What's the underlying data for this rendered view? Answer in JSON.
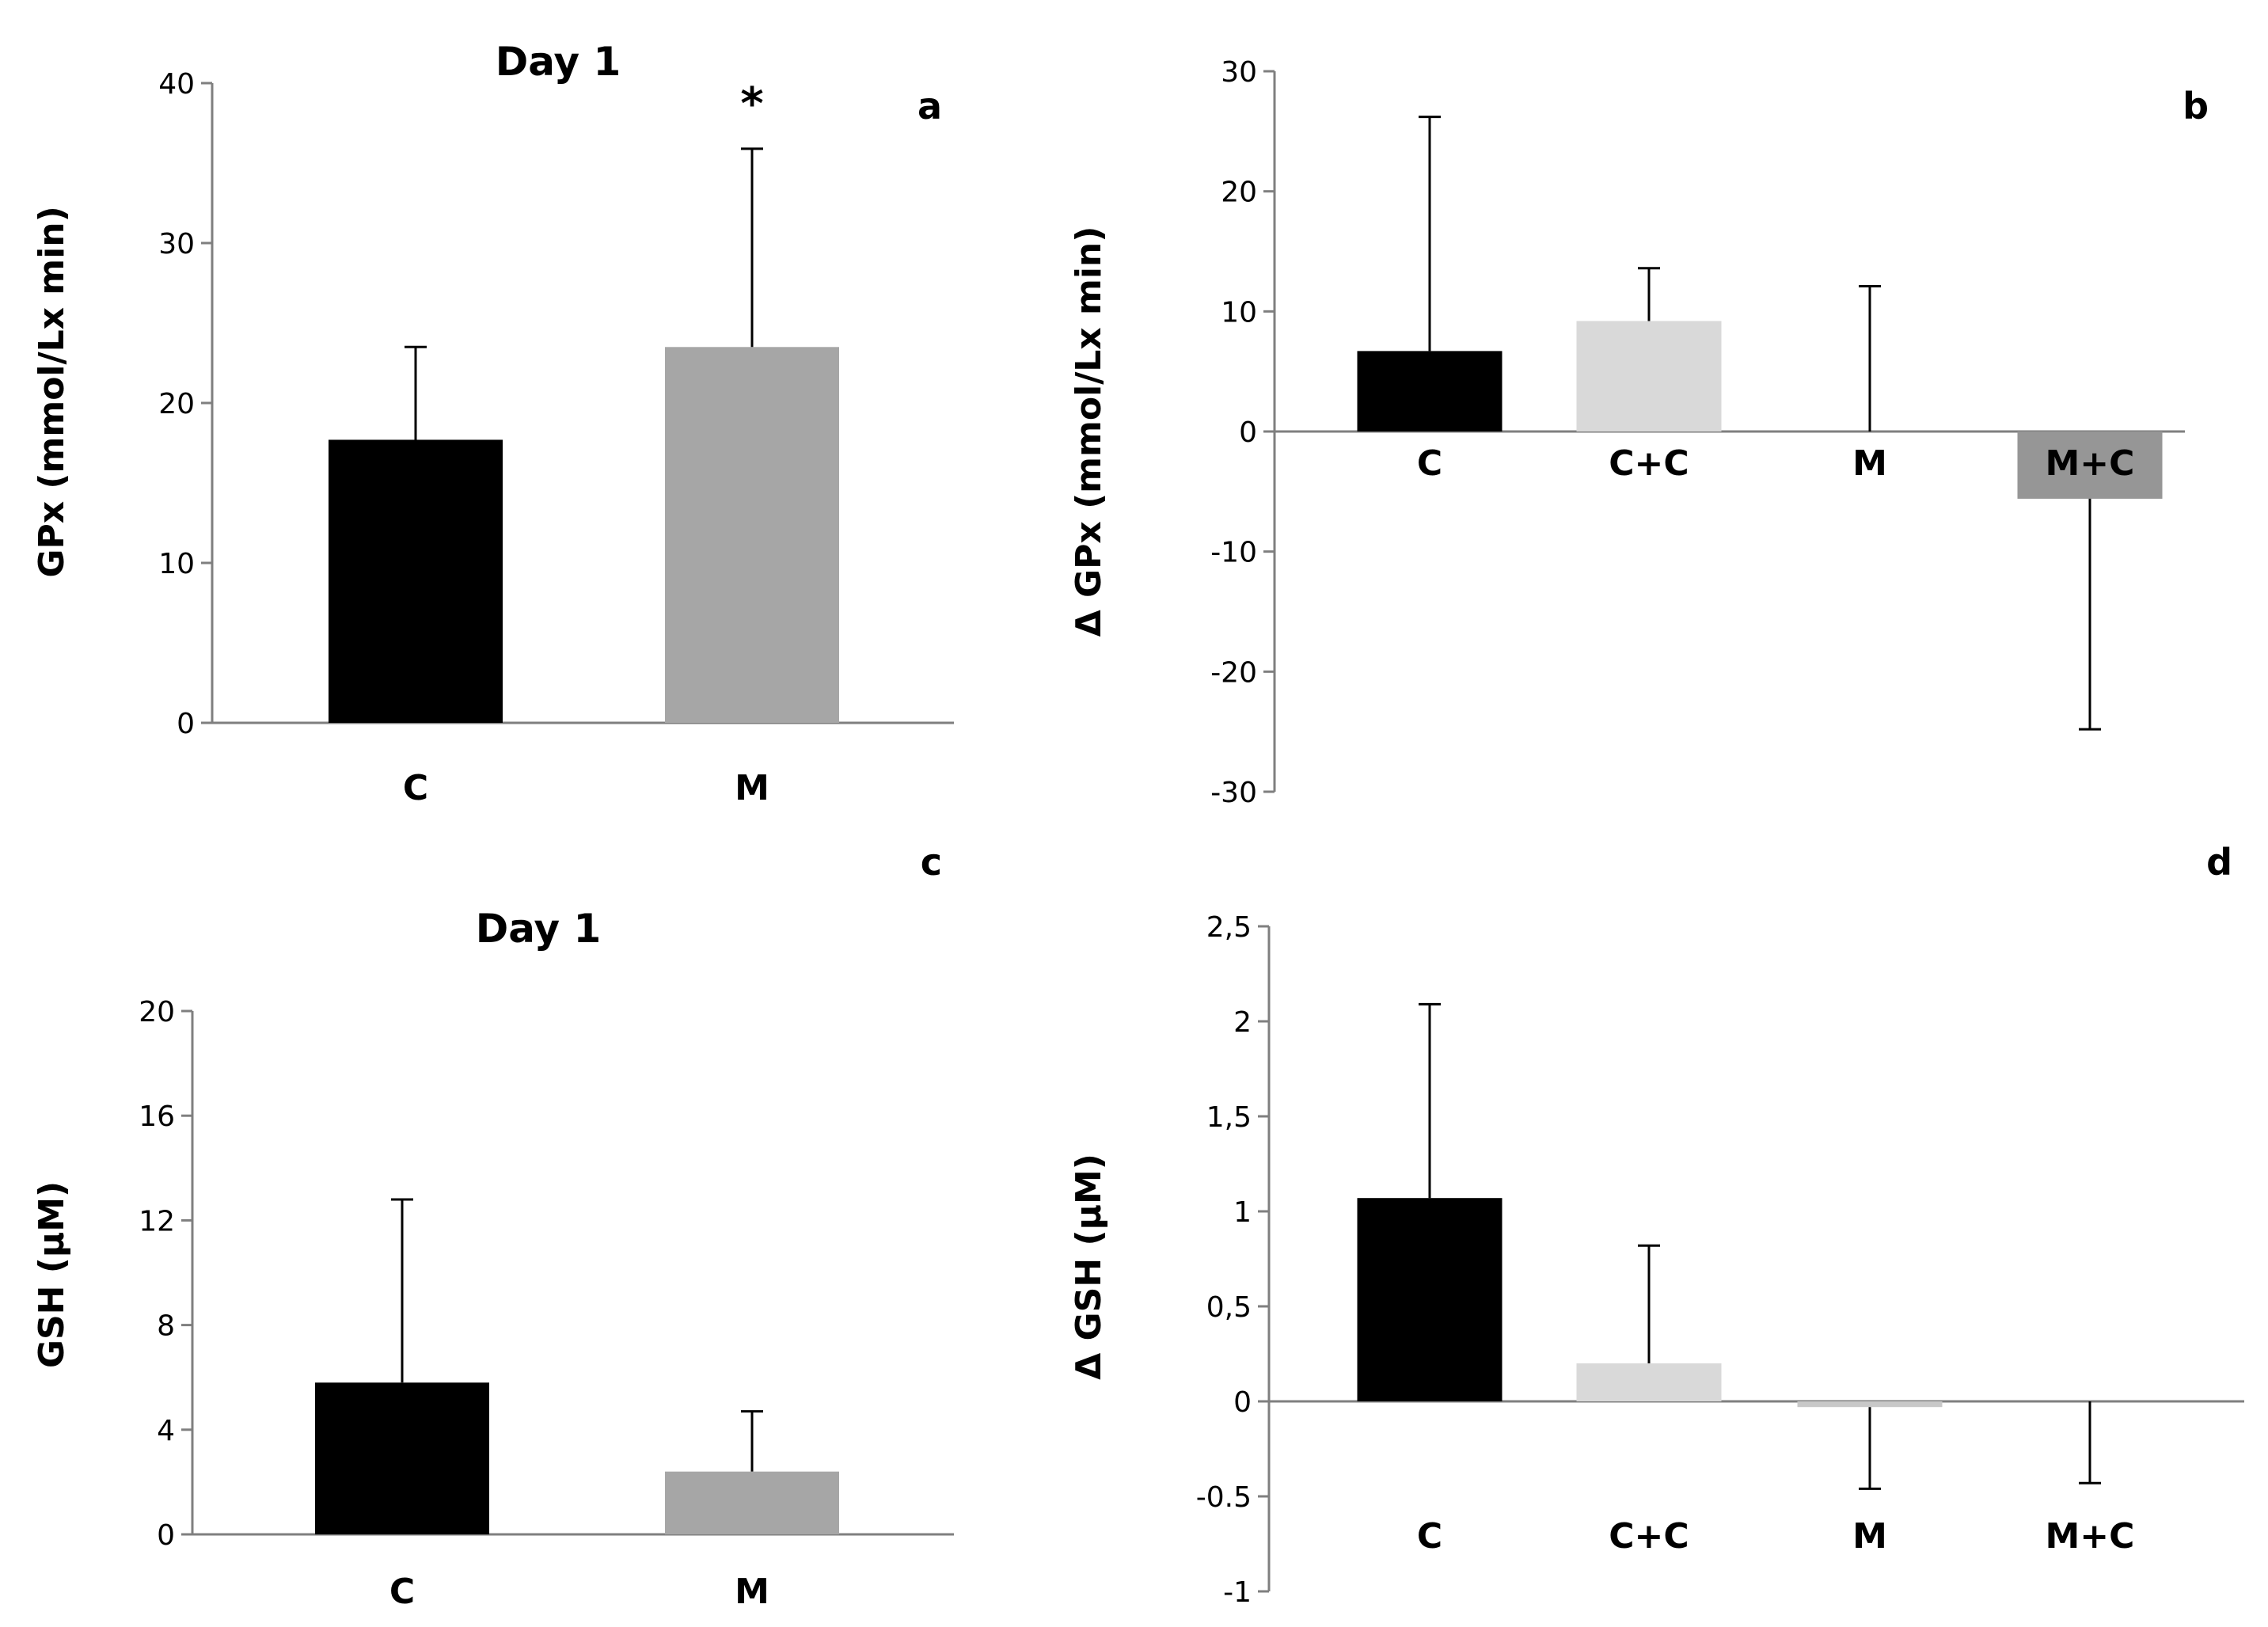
{
  "chart_data": [
    {
      "panel_label": "a",
      "type": "bar",
      "title": "Day 1",
      "ylabel": "GPx (mmol/Lx min)",
      "xlabel": "",
      "categories": [
        "C",
        "M"
      ],
      "values": [
        17.7,
        23.5
      ],
      "error_bars_upper": [
        5.8,
        12.4
      ],
      "colors": [
        "#000000",
        "#a6a6a6"
      ],
      "ylim": [
        0,
        40
      ],
      "yticks": [
        "0",
        "10",
        "20",
        "30",
        "40"
      ],
      "annotations": [
        {
          "category": "M",
          "text": "*"
        }
      ]
    },
    {
      "panel_label": "b",
      "type": "bar",
      "title": "",
      "ylabel": "Δ GPx (mmol/Lx min)",
      "xlabel": "",
      "categories": [
        "C",
        "C+C",
        "M",
        "M+C"
      ],
      "values": [
        6.7,
        9.2,
        0.0,
        -5.6
      ],
      "error_bars": [
        19.5,
        4.4,
        12.1,
        19.2
      ],
      "colors": [
        "#000000",
        "#d9d9d9",
        "#bfbfbf",
        "#969696"
      ],
      "ylim": [
        -30,
        30
      ],
      "yticks": [
        "-30",
        "-20",
        "-10",
        "0",
        "10",
        "20",
        "30"
      ]
    },
    {
      "panel_label": "c",
      "type": "bar",
      "title": "Day 1",
      "ylabel": "GSH (µM)",
      "xlabel": "",
      "categories": [
        "C",
        "M"
      ],
      "values": [
        5.8,
        2.4
      ],
      "error_bars_upper": [
        7.0,
        2.3
      ],
      "colors": [
        "#000000",
        "#a6a6a6"
      ],
      "ylim": [
        0,
        20
      ],
      "yticks": [
        "0",
        "4",
        "8",
        "12",
        "16",
        "20"
      ]
    },
    {
      "panel_label": "d",
      "type": "bar",
      "title": "",
      "ylabel": "Δ GSH (µM)",
      "xlabel": "",
      "categories": [
        "C",
        "C+C",
        "M",
        "M+C"
      ],
      "values": [
        1.07,
        0.2,
        -0.03,
        0.0
      ],
      "error_bars": [
        1.02,
        0.62,
        0.43,
        0.43
      ],
      "colors": [
        "#000000",
        "#d9d9d9",
        "#c8c8c8",
        "#a6a6a6"
      ],
      "ylim": [
        -1,
        2.5
      ],
      "yticks": [
        "-1",
        "-0.5",
        "0",
        "0,5",
        "1",
        "1,5",
        "2",
        "2,5"
      ]
    }
  ]
}
